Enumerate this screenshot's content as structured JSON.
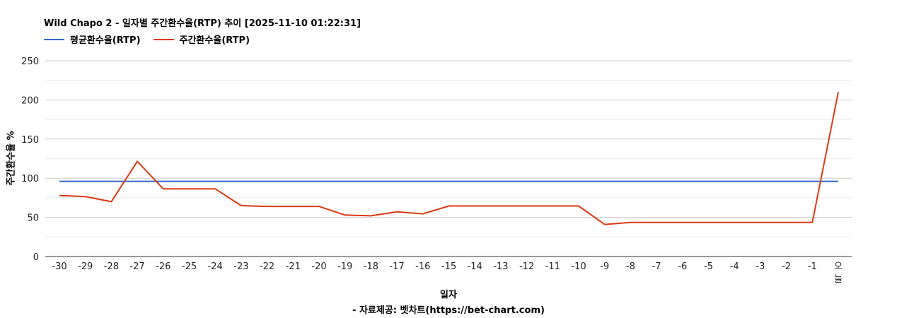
{
  "chart_data": {
    "type": "line",
    "title": "Wild Chapo 2 - 일자별 주간환수율(RTP) 추이 [2025-11-10 01:22:31]",
    "xlabel": "일자",
    "ylabel": "주간환수율 %",
    "source": "- 자료제공: 벳차트(https://bet-chart.com)",
    "categories": [
      "-30",
      "-29",
      "-28",
      "-27",
      "-26",
      "-25",
      "-24",
      "-23",
      "-22",
      "-21",
      "-20",
      "-19",
      "-18",
      "-17",
      "-16",
      "-15",
      "-14",
      "-13",
      "-12",
      "-11",
      "-10",
      "-9",
      "-8",
      "-7",
      "-6",
      "-5",
      "-4",
      "-3",
      "-2",
      "-1",
      "오늘"
    ],
    "ylim": [
      0,
      250
    ],
    "yticks": [
      0,
      50,
      100,
      150,
      200,
      250
    ],
    "grid": true,
    "legend_position": "top-left",
    "series": [
      {
        "name": "평균환수율(RTP)",
        "color": "#3366cc",
        "values": [
          96,
          96,
          96,
          96,
          96,
          96,
          96,
          96,
          96,
          96,
          96,
          96,
          96,
          96,
          96,
          96,
          96,
          96,
          96,
          96,
          96,
          96,
          96,
          96,
          96,
          96,
          96,
          96,
          96,
          96,
          96
        ]
      },
      {
        "name": "주간환수율(RTP)",
        "color": "#dc3912",
        "values": [
          78,
          76.5,
          70,
          121.5,
          86.5,
          86.5,
          86.5,
          65,
          64,
          64,
          64,
          53,
          52,
          57,
          54.5,
          64.5,
          64.5,
          64.5,
          64.5,
          64.5,
          64.5,
          41,
          43.5,
          43.5,
          43.5,
          43.5,
          43.5,
          43.5,
          43.5,
          43.5,
          210
        ]
      }
    ]
  }
}
